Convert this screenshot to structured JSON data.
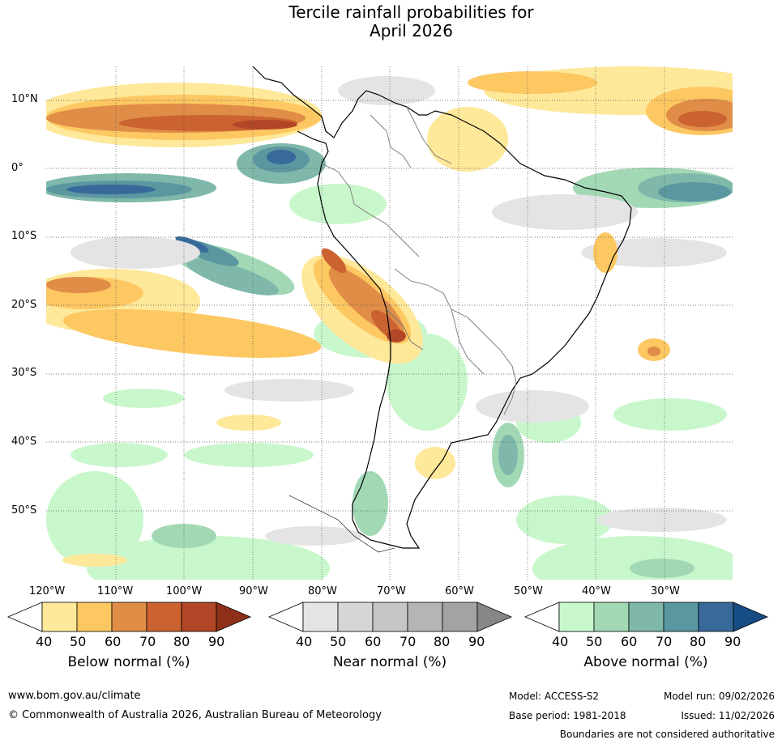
{
  "title": {
    "line1": "Tercile rainfall probabilities for",
    "line2": "April 2026"
  },
  "map": {
    "lat_labels": [
      "10°N",
      "0°",
      "10°S",
      "20°S",
      "30°S",
      "40°S",
      "50°S"
    ],
    "lon_labels": [
      "120°W",
      "110°W",
      "100°W",
      "90°W",
      "80°W",
      "70°W",
      "60°W",
      "50°W",
      "40°W",
      "30°W"
    ]
  },
  "legend": {
    "below": {
      "label": "Below normal (%)",
      "ticks": [
        "40",
        "50",
        "60",
        "70",
        "80",
        "90"
      ],
      "colors": [
        "#ffffff",
        "#fee89a",
        "#fdc762",
        "#e08d47",
        "#cb6331",
        "#b14726",
        "#8e3018"
      ]
    },
    "near": {
      "label": "Near normal (%)",
      "ticks": [
        "40",
        "50",
        "60",
        "70",
        "80",
        "90"
      ],
      "colors": [
        "#ffffff",
        "#e4e4e4",
        "#d6d6d6",
        "#c6c6c6",
        "#b5b5b5",
        "#a3a3a3",
        "#878787"
      ]
    },
    "above": {
      "label": "Above normal (%)",
      "ticks": [
        "40",
        "50",
        "60",
        "70",
        "80",
        "90"
      ],
      "colors": [
        "#ffffff",
        "#c9f7cc",
        "#a3d8b5",
        "#7fb8ab",
        "#5a97a0",
        "#376a9a",
        "#174d85"
      ]
    }
  },
  "footer": {
    "url": "www.bom.gov.au/climate",
    "copyright": "© Commonwealth of Australia 2026, Australian Bureau of Meteorology",
    "model": "Model: ACCESS-S2",
    "model_run": "Model run: 09/02/2026",
    "base_period": "Base period: 1981-2018",
    "issued": "Issued: 11/02/2026",
    "boundaries": "Boundaries are not considered authoritative"
  }
}
